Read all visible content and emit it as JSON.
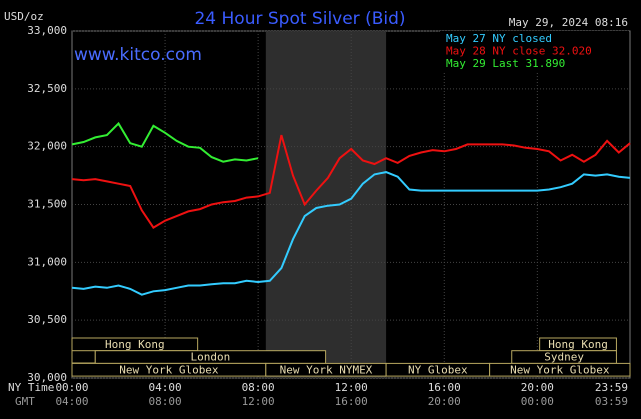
{
  "chart_data": {
    "type": "line",
    "title": "24 Hour Spot Silver (Bid)",
    "unit_label": "USD/oz",
    "timestamp": "May 29, 2024 08:16",
    "watermark": "www.kitco.com",
    "x_axis_labels": [
      "NY Time",
      "GMT"
    ],
    "x": [
      0,
      0.5,
      1,
      1.5,
      2,
      2.5,
      3,
      3.5,
      4,
      4.5,
      5,
      5.5,
      6,
      6.5,
      7,
      7.5,
      8,
      8.5,
      9,
      9.5,
      10,
      10.5,
      11,
      11.5,
      12,
      12.5,
      13,
      13.5,
      14,
      14.5,
      15,
      15.5,
      16,
      16.5,
      17,
      17.5,
      18,
      18.5,
      19,
      19.5,
      20,
      20.5,
      21,
      21.5,
      22,
      22.5,
      23,
      23.5,
      23.983
    ],
    "series": [
      {
        "name": "May 27 NY closed",
        "color": "#33ccff",
        "values": [
          30.78,
          30.77,
          30.79,
          30.78,
          30.8,
          30.77,
          30.72,
          30.75,
          30.76,
          30.78,
          30.8,
          30.8,
          30.81,
          30.82,
          30.82,
          30.84,
          30.83,
          30.84,
          30.95,
          31.2,
          31.4,
          31.47,
          31.49,
          31.5,
          31.55,
          31.68,
          31.76,
          31.78,
          31.74,
          31.63,
          31.62,
          31.62,
          31.62,
          31.62,
          31.62,
          31.62,
          31.62,
          31.62,
          31.62,
          31.62,
          31.62,
          31.63,
          31.65,
          31.68,
          31.76,
          31.75,
          31.76,
          31.74,
          31.73
        ]
      },
      {
        "name": "May 28 NY close 32.020",
        "color": "#ee1111",
        "values": [
          31.72,
          31.71,
          31.72,
          31.7,
          31.68,
          31.66,
          31.45,
          31.3,
          31.36,
          31.4,
          31.44,
          31.46,
          31.5,
          31.52,
          31.53,
          31.56,
          31.57,
          31.6,
          32.1,
          31.75,
          31.5,
          31.62,
          31.73,
          31.9,
          31.98,
          31.88,
          31.85,
          31.9,
          31.86,
          31.92,
          31.95,
          31.97,
          31.96,
          31.98,
          32.02,
          32.02,
          32.02,
          32.02,
          32.01,
          31.99,
          31.98,
          31.96,
          31.88,
          31.93,
          31.87,
          31.93,
          32.05,
          31.95,
          32.03
        ]
      },
      {
        "name": "May 29 Last 31.890",
        "color": "#33ee33",
        "values": [
          32.02,
          32.04,
          32.08,
          32.1,
          32.2,
          32.03,
          32.0,
          32.18,
          32.12,
          32.05,
          32.0,
          31.99,
          31.91,
          31.87,
          31.89,
          31.88,
          31.9,
          null,
          null,
          null,
          null,
          null,
          null,
          null,
          null,
          null,
          null,
          null,
          null,
          null,
          null,
          null,
          null,
          null,
          null,
          null,
          null,
          null,
          null,
          null,
          null,
          null,
          null,
          null,
          null,
          null,
          null,
          null,
          null
        ]
      }
    ],
    "xlim": [
      0,
      23.983
    ],
    "xticks": [
      {
        "value": 0,
        "label": "00:00"
      },
      {
        "value": 4,
        "label": "04:00"
      },
      {
        "value": 8,
        "label": "08:00"
      },
      {
        "value": 12,
        "label": "12:00"
      },
      {
        "value": 16,
        "label": "16:00"
      },
      {
        "value": 20,
        "label": "20:00"
      },
      {
        "value": 23.983,
        "label": "23:59"
      }
    ],
    "x2ticklabels": [
      "04:00",
      "08:00",
      "12:00",
      "16:00",
      "20:00",
      "00:00",
      "03:59"
    ],
    "ylim": [
      30,
      33
    ],
    "yticks": [
      {
        "value": 30,
        "label": "30,000"
      },
      {
        "value": 30.5,
        "label": "30,500"
      },
      {
        "value": 31,
        "label": "31,000"
      },
      {
        "value": 31.5,
        "label": "31,500"
      },
      {
        "value": 32,
        "label": "32,000"
      },
      {
        "value": 32.5,
        "label": "32,500"
      },
      {
        "value": 33,
        "label": "33,000"
      }
    ],
    "grid": true,
    "sessions": [
      "Hong Kong",
      "Hong Kong",
      "London",
      "Sydney",
      "New York Globex",
      "New York NYMEX",
      "NY Globex",
      "New York Globex"
    ]
  }
}
